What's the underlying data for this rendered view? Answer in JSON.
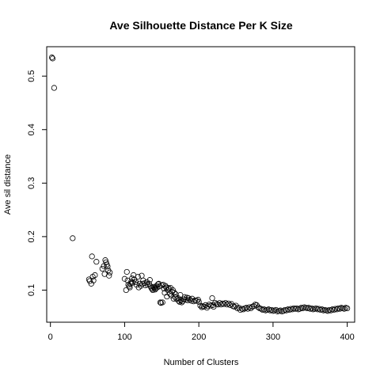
{
  "chart_data": {
    "type": "scatter",
    "title": "Ave Silhouette Distance Per K Size",
    "xlabel": "Number of Clusters",
    "ylabel": "Ave sil distance",
    "xlim": [
      -5,
      410
    ],
    "ylim": [
      0.04,
      0.555
    ],
    "xticks": [
      0,
      100,
      200,
      300,
      400
    ],
    "yticks": [
      0.1,
      0.2,
      0.3,
      0.4,
      0.5
    ],
    "xtick_labels": [
      "0",
      "100",
      "200",
      "300",
      "400"
    ],
    "ytick_labels": [
      "0.1",
      "0.2",
      "0.3",
      "0.4",
      "0.5"
    ],
    "grid": false,
    "marker": "open-circle",
    "points": [
      [
        2,
        0.535
      ],
      [
        3,
        0.533
      ],
      [
        5,
        0.478
      ],
      [
        30,
        0.197
      ],
      [
        52,
        0.12
      ],
      [
        53,
        0.117
      ],
      [
        55,
        0.112
      ],
      [
        56,
        0.163
      ],
      [
        57,
        0.125
      ],
      [
        58,
        0.118
      ],
      [
        60,
        0.128
      ],
      [
        62,
        0.153
      ],
      [
        70,
        0.14
      ],
      [
        72,
        0.145
      ],
      [
        73,
        0.13
      ],
      [
        74,
        0.156
      ],
      [
        75,
        0.152
      ],
      [
        76,
        0.148
      ],
      [
        77,
        0.144
      ],
      [
        78,
        0.137
      ],
      [
        79,
        0.127
      ],
      [
        80,
        0.133
      ],
      [
        100,
        0.121
      ],
      [
        102,
        0.1
      ],
      [
        103,
        0.134
      ],
      [
        104,
        0.118
      ],
      [
        105,
        0.11
      ],
      [
        106,
        0.107
      ],
      [
        107,
        0.105
      ],
      [
        108,
        0.112
      ],
      [
        109,
        0.116
      ],
      [
        110,
        0.122
      ],
      [
        111,
        0.114
      ],
      [
        112,
        0.128
      ],
      [
        113,
        0.12
      ],
      [
        115,
        0.115
      ],
      [
        116,
        0.11
      ],
      [
        118,
        0.125
      ],
      [
        119,
        0.105
      ],
      [
        120,
        0.112
      ],
      [
        122,
        0.108
      ],
      [
        123,
        0.127
      ],
      [
        124,
        0.112
      ],
      [
        125,
        0.118
      ],
      [
        127,
        0.113
      ],
      [
        128,
        0.109
      ],
      [
        130,
        0.115
      ],
      [
        131,
        0.11
      ],
      [
        133,
        0.112
      ],
      [
        134,
        0.119
      ],
      [
        135,
        0.107
      ],
      [
        136,
        0.104
      ],
      [
        137,
        0.102
      ],
      [
        138,
        0.1
      ],
      [
        139,
        0.106
      ],
      [
        140,
        0.104
      ],
      [
        141,
        0.101
      ],
      [
        142,
        0.103
      ],
      [
        143,
        0.108
      ],
      [
        144,
        0.105
      ],
      [
        145,
        0.111
      ],
      [
        146,
        0.112
      ],
      [
        147,
        0.107
      ],
      [
        148,
        0.077
      ],
      [
        149,
        0.076
      ],
      [
        150,
        0.109
      ],
      [
        151,
        0.077
      ],
      [
        152,
        0.11
      ],
      [
        153,
        0.103
      ],
      [
        154,
        0.095
      ],
      [
        155,
        0.108
      ],
      [
        156,
        0.105
      ],
      [
        157,
        0.088
      ],
      [
        158,
        0.1
      ],
      [
        159,
        0.104
      ],
      [
        160,
        0.102
      ],
      [
        161,
        0.093
      ],
      [
        162,
        0.104
      ],
      [
        163,
        0.09
      ],
      [
        164,
        0.097
      ],
      [
        165,
        0.1
      ],
      [
        166,
        0.084
      ],
      [
        167,
        0.095
      ],
      [
        168,
        0.087
      ],
      [
        169,
        0.092
      ],
      [
        170,
        0.083
      ],
      [
        172,
        0.085
      ],
      [
        173,
        0.08
      ],
      [
        174,
        0.078
      ],
      [
        175,
        0.091
      ],
      [
        176,
        0.081
      ],
      [
        177,
        0.077
      ],
      [
        178,
        0.079
      ],
      [
        180,
        0.083
      ],
      [
        181,
        0.087
      ],
      [
        182,
        0.082
      ],
      [
        184,
        0.086
      ],
      [
        185,
        0.081
      ],
      [
        186,
        0.085
      ],
      [
        188,
        0.082
      ],
      [
        190,
        0.08
      ],
      [
        191,
        0.084
      ],
      [
        193,
        0.079
      ],
      [
        195,
        0.081
      ],
      [
        197,
        0.08
      ],
      [
        199,
        0.082
      ],
      [
        200,
        0.078
      ],
      [
        202,
        0.071
      ],
      [
        204,
        0.068
      ],
      [
        205,
        0.07
      ],
      [
        207,
        0.069
      ],
      [
        209,
        0.072
      ],
      [
        211,
        0.067
      ],
      [
        212,
        0.07
      ],
      [
        214,
        0.073
      ],
      [
        216,
        0.071
      ],
      [
        218,
        0.085
      ],
      [
        219,
        0.072
      ],
      [
        220,
        0.069
      ],
      [
        222,
        0.076
      ],
      [
        224,
        0.074
      ],
      [
        226,
        0.073
      ],
      [
        228,
        0.076
      ],
      [
        230,
        0.073
      ],
      [
        232,
        0.075
      ],
      [
        234,
        0.074
      ],
      [
        236,
        0.076
      ],
      [
        238,
        0.073
      ],
      [
        240,
        0.075
      ],
      [
        242,
        0.072
      ],
      [
        244,
        0.074
      ],
      [
        246,
        0.07
      ],
      [
        248,
        0.069
      ],
      [
        250,
        0.071
      ],
      [
        252,
        0.066
      ],
      [
        254,
        0.067
      ],
      [
        256,
        0.063
      ],
      [
        258,
        0.065
      ],
      [
        260,
        0.064
      ],
      [
        262,
        0.066
      ],
      [
        264,
        0.067
      ],
      [
        266,
        0.065
      ],
      [
        268,
        0.068
      ],
      [
        270,
        0.066
      ],
      [
        272,
        0.069
      ],
      [
        274,
        0.07
      ],
      [
        276,
        0.073
      ],
      [
        278,
        0.072
      ],
      [
        280,
        0.068
      ],
      [
        282,
        0.066
      ],
      [
        284,
        0.065
      ],
      [
        286,
        0.063
      ],
      [
        288,
        0.064
      ],
      [
        290,
        0.062
      ],
      [
        292,
        0.063
      ],
      [
        294,
        0.064
      ],
      [
        296,
        0.062
      ],
      [
        298,
        0.063
      ],
      [
        300,
        0.061
      ],
      [
        302,
        0.062
      ],
      [
        304,
        0.063
      ],
      [
        306,
        0.06
      ],
      [
        308,
        0.061
      ],
      [
        310,
        0.062
      ],
      [
        312,
        0.06
      ],
      [
        314,
        0.061
      ],
      [
        316,
        0.063
      ],
      [
        318,
        0.062
      ],
      [
        320,
        0.064
      ],
      [
        322,
        0.063
      ],
      [
        324,
        0.065
      ],
      [
        326,
        0.064
      ],
      [
        328,
        0.066
      ],
      [
        330,
        0.065
      ],
      [
        332,
        0.066
      ],
      [
        334,
        0.064
      ],
      [
        336,
        0.065
      ],
      [
        338,
        0.067
      ],
      [
        340,
        0.066
      ],
      [
        342,
        0.068
      ],
      [
        344,
        0.067
      ],
      [
        346,
        0.066
      ],
      [
        348,
        0.067
      ],
      [
        350,
        0.065
      ],
      [
        352,
        0.066
      ],
      [
        354,
        0.064
      ],
      [
        356,
        0.065
      ],
      [
        358,
        0.066
      ],
      [
        360,
        0.064
      ],
      [
        362,
        0.065
      ],
      [
        364,
        0.063
      ],
      [
        366,
        0.064
      ],
      [
        368,
        0.062
      ],
      [
        370,
        0.063
      ],
      [
        372,
        0.062
      ],
      [
        374,
        0.061
      ],
      [
        376,
        0.063
      ],
      [
        378,
        0.062
      ],
      [
        380,
        0.064
      ],
      [
        382,
        0.063
      ],
      [
        384,
        0.065
      ],
      [
        386,
        0.064
      ],
      [
        388,
        0.066
      ],
      [
        390,
        0.065
      ],
      [
        392,
        0.067
      ],
      [
        394,
        0.066
      ],
      [
        396,
        0.065
      ],
      [
        398,
        0.067
      ],
      [
        400,
        0.066
      ]
    ]
  }
}
